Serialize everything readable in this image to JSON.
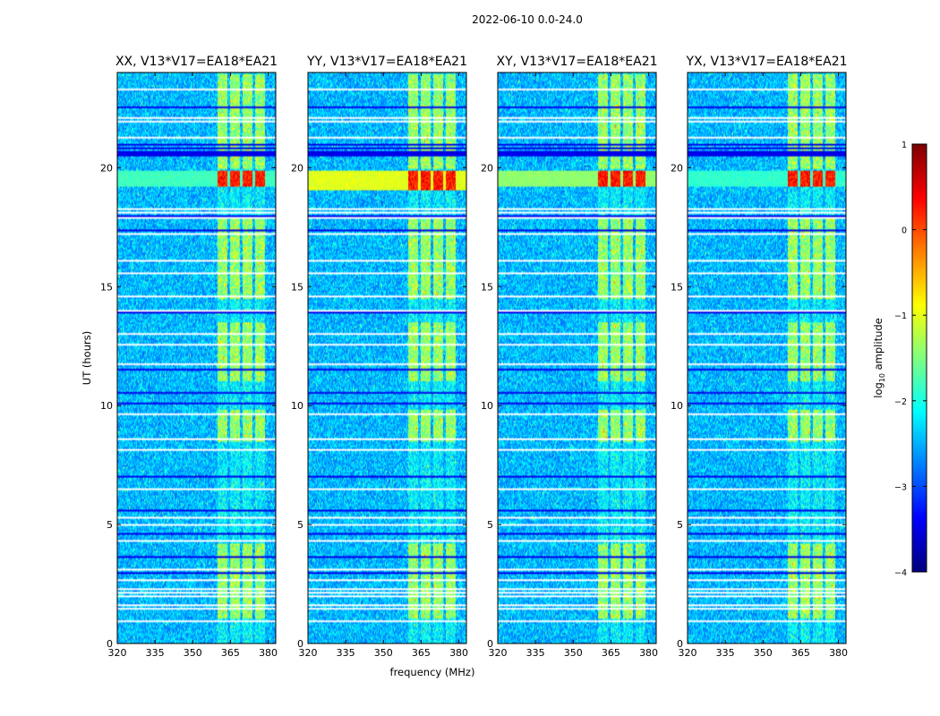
{
  "chart_data": {
    "type": "heatmap",
    "title": "2022-06-10 0.0-24.0",
    "xlabel": "frequency (MHz)",
    "ylabel": "UT (hours)",
    "xlim": [
      320,
      383
    ],
    "ylim": [
      0,
      24
    ],
    "x_ticks": [
      "320",
      "335",
      "350",
      "365",
      "380"
    ],
    "x_tick_values": [
      320,
      335,
      350,
      365,
      380
    ],
    "y_ticks": [
      "0",
      "5",
      "10",
      "15",
      "20"
    ],
    "y_tick_values": [
      0,
      5,
      10,
      15,
      20
    ],
    "panels": [
      {
        "title": "XX, V13*V17=EA18*EA21",
        "peak_band_hours": [
          19.2,
          19.9
        ],
        "wideband_strength": 0.35
      },
      {
        "title": "YY, V13*V17=EA18*EA21",
        "peak_band_hours": [
          19.1,
          19.9
        ],
        "wideband_strength": 0.85
      },
      {
        "title": "XY, V13*V17=EA18*EA21",
        "peak_band_hours": [
          19.2,
          19.9
        ],
        "wideband_strength": 0.6
      },
      {
        "title": "YX, V13*V17=EA18*EA21",
        "peak_band_hours": [
          19.2,
          19.9
        ],
        "wideband_strength": 0.3
      }
    ],
    "rfi_frequency_bands_mhz": [
      [
        360,
        364
      ],
      [
        365,
        369
      ],
      [
        370,
        374
      ],
      [
        375,
        379
      ]
    ],
    "flagged_hours": [
      0.9,
      1.45,
      1.6,
      1.95,
      2.1,
      2.25,
      2.6,
      3.1,
      4.3,
      5.0,
      5.3,
      6.5,
      8.1,
      8.6,
      9.6,
      11.7,
      12.6,
      13.0,
      14.0,
      14.6,
      15.6,
      16.1,
      17.2,
      17.9,
      18.1,
      18.3,
      21.3,
      22.0,
      22.1,
      23.3
    ],
    "dark_hours": [
      2.9,
      3.6,
      4.6,
      5.6,
      7.0,
      10.1,
      10.5,
      11.5,
      13.9,
      17.4,
      18.0,
      20.6,
      21.0,
      22.6
    ],
    "colorbar": {
      "label": "log10 amplitude",
      "label_prefix": "log",
      "label_sub": "10",
      "label_suffix": " amplitude",
      "range": [
        -4,
        1
      ],
      "ticks": [
        "1",
        "0",
        "−1",
        "−2",
        "−3",
        "−4"
      ],
      "tick_values": [
        1,
        0,
        -1,
        -2,
        -3,
        -4
      ],
      "colormap": "jet"
    }
  }
}
